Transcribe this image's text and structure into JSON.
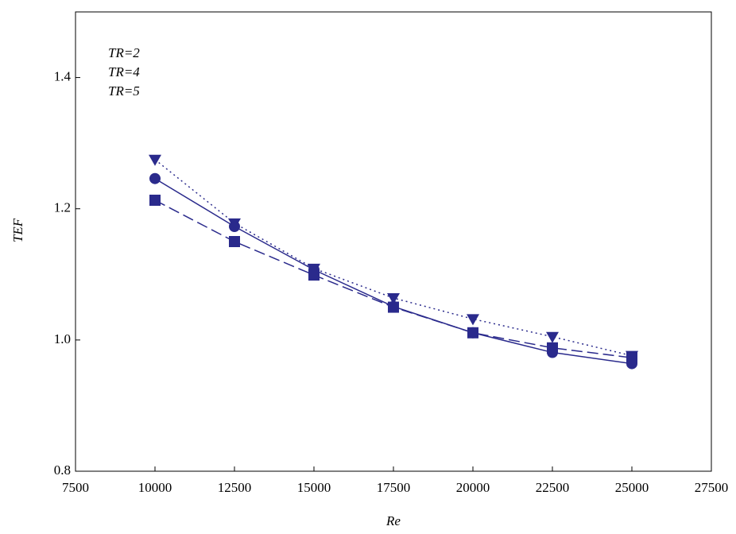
{
  "chart_data": {
    "type": "line",
    "x_label": "Re",
    "y_label": "TEF",
    "x": [
      10000,
      12500,
      15000,
      17500,
      20000,
      22500,
      25000
    ],
    "series": [
      {
        "name": "TR=2",
        "color": "#2a2a8c",
        "marker": "circle",
        "dash": "solid",
        "values": [
          1.246,
          1.173,
          1.107,
          1.051,
          1.011,
          0.981,
          0.964
        ]
      },
      {
        "name": "TR=4",
        "color": "#2a2a8c",
        "marker": "square",
        "dash": "dashed",
        "values": [
          1.213,
          1.15,
          1.099,
          1.05,
          1.011,
          0.988,
          0.973
        ]
      },
      {
        "name": "TR=5",
        "color": "#2a2a8c",
        "marker": "triangle",
        "dash": "dotted",
        "values": [
          1.275,
          1.178,
          1.109,
          1.064,
          1.032,
          1.005,
          0.976
        ]
      }
    ],
    "xlim": [
      7500,
      27500
    ],
    "xticks": [
      7500,
      10000,
      12500,
      15000,
      17500,
      20000,
      22500,
      25000,
      27500
    ],
    "ylim": [
      0.8,
      1.5
    ],
    "yticks": [
      0.8,
      {
        "value": 1,
        "label": "1.0"
      },
      1.2,
      1.4
    ],
    "grid": false
  }
}
